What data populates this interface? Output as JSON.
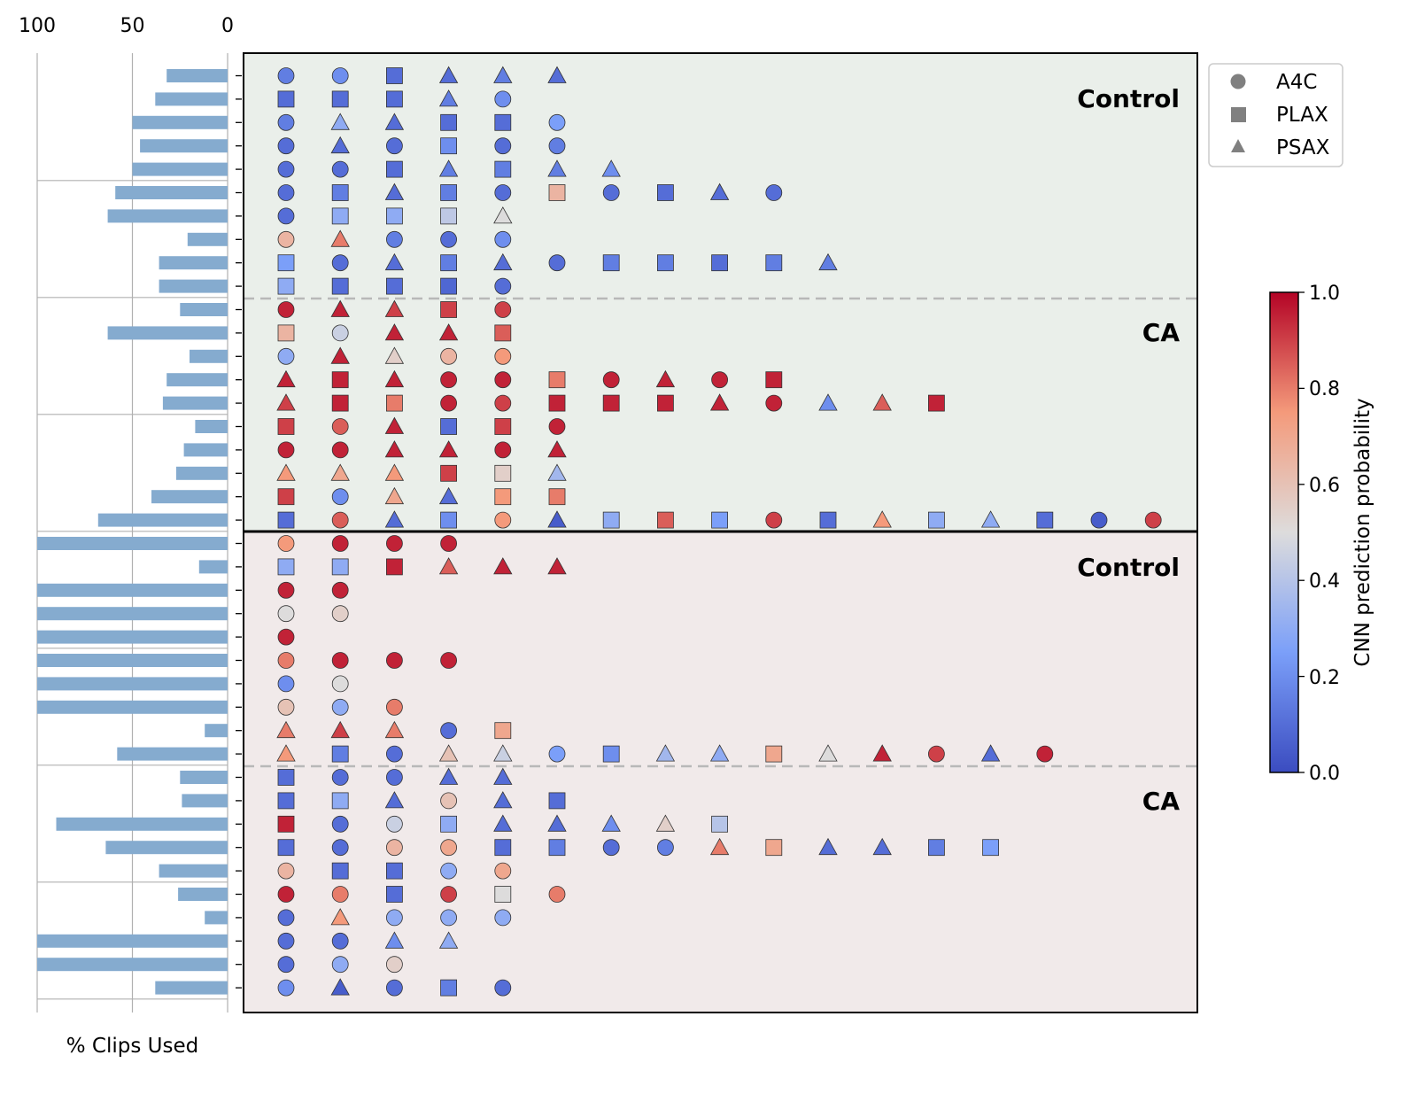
{
  "chart_data": [
    {
      "type": "bar",
      "orientation": "horizontal",
      "xlabel": "% Clips Used",
      "xlim": [
        100,
        0
      ],
      "xticks": [
        "100",
        "50",
        "0"
      ],
      "values": [
        32,
        38,
        50,
        46,
        50,
        59,
        63,
        21,
        36,
        36,
        25,
        63,
        20,
        32,
        34,
        17,
        23,
        27,
        40,
        68,
        100,
        15,
        100,
        100,
        100,
        100,
        100,
        100,
        12,
        58,
        25,
        24,
        90,
        64,
        36,
        26,
        12,
        100,
        100,
        38
      ]
    },
    {
      "type": "scatter",
      "ylabel_colorbar": "CNN prediction probability",
      "colorbar_ticks": [
        "0.0",
        "0.2",
        "0.4",
        "0.6",
        "0.8",
        "1.0"
      ],
      "colormap": "coolwarm",
      "legend": [
        {
          "marker": "circle",
          "label": "A4C"
        },
        {
          "marker": "square",
          "label": "PLAX"
        },
        {
          "marker": "triangle",
          "label": "PSAX"
        }
      ],
      "legend_position": "upper right",
      "panels": [
        {
          "name": "top",
          "group_labels": [
            "Control",
            "CA"
          ]
        },
        {
          "name": "bottom",
          "group_labels": [
            "Control",
            "CA"
          ]
        }
      ],
      "rows": [
        [
          [
            "c",
            0.15
          ],
          [
            "c",
            0.2
          ],
          [
            "s",
            0.1
          ],
          [
            "t",
            0.1
          ],
          [
            "t",
            0.15
          ],
          [
            "t",
            0.1
          ]
        ],
        [
          [
            "s",
            0.1
          ],
          [
            "s",
            0.1
          ],
          [
            "s",
            0.1
          ],
          [
            "t",
            0.15
          ],
          [
            "c",
            0.2
          ]
        ],
        [
          [
            "c",
            0.15
          ],
          [
            "t",
            0.3
          ],
          [
            "t",
            0.1
          ],
          [
            "s",
            0.1
          ],
          [
            "s",
            0.1
          ],
          [
            "c",
            0.25
          ]
        ],
        [
          [
            "c",
            0.1
          ],
          [
            "t",
            0.1
          ],
          [
            "c",
            0.1
          ],
          [
            "s",
            0.2
          ],
          [
            "c",
            0.1
          ],
          [
            "c",
            0.15
          ]
        ],
        [
          [
            "c",
            0.1
          ],
          [
            "c",
            0.1
          ],
          [
            "s",
            0.1
          ],
          [
            "t",
            0.15
          ],
          [
            "s",
            0.15
          ],
          [
            "t",
            0.15
          ],
          [
            "t",
            0.2
          ]
        ],
        [
          [
            "c",
            0.1
          ],
          [
            "s",
            0.15
          ],
          [
            "t",
            0.1
          ],
          [
            "s",
            0.15
          ],
          [
            "c",
            0.1
          ],
          [
            "s",
            0.65
          ],
          [
            "c",
            0.1
          ],
          [
            "s",
            0.1
          ],
          [
            "t",
            0.1
          ],
          [
            "c",
            0.1
          ]
        ],
        [
          [
            "c",
            0.1
          ],
          [
            "s",
            0.3
          ],
          [
            "s",
            0.3
          ],
          [
            "s",
            0.42
          ],
          [
            "t",
            0.5
          ]
        ],
        [
          [
            "c",
            0.65
          ],
          [
            "t",
            0.8
          ],
          [
            "c",
            0.15
          ],
          [
            "c",
            0.1
          ],
          [
            "c",
            0.2
          ]
        ],
        [
          [
            "s",
            0.25
          ],
          [
            "c",
            0.1
          ],
          [
            "t",
            0.1
          ],
          [
            "s",
            0.15
          ],
          [
            "t",
            0.1
          ],
          [
            "c",
            0.1
          ],
          [
            "s",
            0.15
          ],
          [
            "s",
            0.15
          ],
          [
            "s",
            0.1
          ],
          [
            "s",
            0.15
          ],
          [
            "t",
            0.15
          ]
        ],
        [
          [
            "s",
            0.3
          ],
          [
            "s",
            0.1
          ],
          [
            "s",
            0.1
          ],
          [
            "s",
            0.08
          ],
          [
            "c",
            0.1
          ]
        ],
        [
          [
            "c",
            0.95
          ],
          [
            "t",
            0.95
          ],
          [
            "t",
            0.9
          ],
          [
            "s",
            0.9
          ],
          [
            "c",
            0.9
          ]
        ],
        [
          [
            "s",
            0.65
          ],
          [
            "c",
            0.45
          ],
          [
            "t",
            0.95
          ],
          [
            "t",
            0.95
          ],
          [
            "s",
            0.85
          ]
        ],
        [
          [
            "c",
            0.3
          ],
          [
            "t",
            0.95
          ],
          [
            "t",
            0.55
          ],
          [
            "c",
            0.65
          ],
          [
            "c",
            0.75
          ]
        ],
        [
          [
            "t",
            0.95
          ],
          [
            "s",
            0.95
          ],
          [
            "t",
            0.95
          ],
          [
            "c",
            0.95
          ],
          [
            "c",
            0.95
          ],
          [
            "s",
            0.8
          ],
          [
            "c",
            0.95
          ],
          [
            "t",
            0.95
          ],
          [
            "c",
            0.95
          ],
          [
            "s",
            0.95
          ]
        ],
        [
          [
            "t",
            0.9
          ],
          [
            "s",
            0.95
          ],
          [
            "s",
            0.8
          ],
          [
            "c",
            0.95
          ],
          [
            "c",
            0.9
          ],
          [
            "s",
            0.95
          ],
          [
            "s",
            0.95
          ],
          [
            "s",
            0.95
          ],
          [
            "t",
            0.95
          ],
          [
            "c",
            0.95
          ],
          [
            "t",
            0.2
          ],
          [
            "t",
            0.85
          ],
          [
            "s",
            0.95
          ]
        ],
        [
          [
            "s",
            0.9
          ],
          [
            "c",
            0.85
          ],
          [
            "t",
            0.95
          ],
          [
            "s",
            0.1
          ],
          [
            "s",
            0.9
          ],
          [
            "c",
            0.95
          ]
        ],
        [
          [
            "c",
            0.95
          ],
          [
            "c",
            0.95
          ],
          [
            "t",
            0.95
          ],
          [
            "t",
            0.95
          ],
          [
            "c",
            0.95
          ],
          [
            "t",
            0.95
          ]
        ],
        [
          [
            "t",
            0.75
          ],
          [
            "t",
            0.7
          ],
          [
            "t",
            0.75
          ],
          [
            "s",
            0.9
          ],
          [
            "s",
            0.55
          ],
          [
            "t",
            0.35
          ]
        ],
        [
          [
            "s",
            0.9
          ],
          [
            "c",
            0.2
          ],
          [
            "t",
            0.7
          ],
          [
            "t",
            0.1
          ],
          [
            "s",
            0.75
          ],
          [
            "s",
            0.8
          ]
        ],
        [
          [
            "s",
            0.1
          ],
          [
            "c",
            0.85
          ],
          [
            "t",
            0.1
          ],
          [
            "s",
            0.2
          ],
          [
            "c",
            0.75
          ],
          [
            "t",
            0.05
          ],
          [
            "s",
            0.3
          ],
          [
            "s",
            0.85
          ],
          [
            "s",
            0.25
          ],
          [
            "c",
            0.9
          ],
          [
            "s",
            0.1
          ],
          [
            "t",
            0.75
          ],
          [
            "s",
            0.3
          ],
          [
            "t",
            0.3
          ],
          [
            "s",
            0.1
          ],
          [
            "c",
            0.05
          ],
          [
            "c",
            0.9
          ]
        ],
        [
          [
            "c",
            0.75
          ],
          [
            "c",
            0.95
          ],
          [
            "c",
            0.95
          ],
          [
            "c",
            0.95
          ]
        ],
        [
          [
            "s",
            0.3
          ],
          [
            "s",
            0.3
          ],
          [
            "s",
            0.95
          ],
          [
            "t",
            0.85
          ],
          [
            "t",
            0.95
          ],
          [
            "t",
            0.95
          ]
        ],
        [
          [
            "c",
            0.95
          ],
          [
            "c",
            0.95
          ]
        ],
        [
          [
            "c",
            0.5
          ],
          [
            "c",
            0.55
          ]
        ],
        [
          [
            "c",
            0.95
          ]
        ],
        [
          [
            "c",
            0.8
          ],
          [
            "c",
            0.95
          ],
          [
            "c",
            0.95
          ],
          [
            "c",
            0.95
          ]
        ],
        [
          [
            "c",
            0.2
          ],
          [
            "c",
            0.5
          ]
        ],
        [
          [
            "c",
            0.6
          ],
          [
            "c",
            0.3
          ],
          [
            "c",
            0.8
          ]
        ],
        [
          [
            "t",
            0.8
          ],
          [
            "t",
            0.9
          ],
          [
            "t",
            0.8
          ],
          [
            "c",
            0.1
          ],
          [
            "s",
            0.7
          ]
        ],
        [
          [
            "t",
            0.75
          ],
          [
            "s",
            0.15
          ],
          [
            "c",
            0.1
          ],
          [
            "t",
            0.6
          ],
          [
            "t",
            0.45
          ],
          [
            "c",
            0.25
          ],
          [
            "s",
            0.2
          ],
          [
            "t",
            0.35
          ],
          [
            "t",
            0.3
          ],
          [
            "s",
            0.7
          ],
          [
            "t",
            0.5
          ],
          [
            "t",
            0.95
          ],
          [
            "c",
            0.9
          ],
          [
            "t",
            0.1
          ],
          [
            "c",
            0.95
          ]
        ],
        [
          [
            "s",
            0.1
          ],
          [
            "c",
            0.1
          ],
          [
            "c",
            0.1
          ],
          [
            "t",
            0.1
          ],
          [
            "t",
            0.1
          ]
        ],
        [
          [
            "s",
            0.1
          ],
          [
            "s",
            0.3
          ],
          [
            "t",
            0.1
          ],
          [
            "c",
            0.6
          ],
          [
            "t",
            0.1
          ],
          [
            "s",
            0.1
          ]
        ],
        [
          [
            "s",
            0.95
          ],
          [
            "c",
            0.1
          ],
          [
            "c",
            0.45
          ],
          [
            "s",
            0.3
          ],
          [
            "t",
            0.1
          ],
          [
            "t",
            0.1
          ],
          [
            "t",
            0.2
          ],
          [
            "t",
            0.55
          ],
          [
            "s",
            0.4
          ]
        ],
        [
          [
            "s",
            0.1
          ],
          [
            "c",
            0.1
          ],
          [
            "c",
            0.65
          ],
          [
            "c",
            0.7
          ],
          [
            "s",
            0.1
          ],
          [
            "s",
            0.15
          ],
          [
            "c",
            0.1
          ],
          [
            "c",
            0.15
          ],
          [
            "t",
            0.8
          ],
          [
            "s",
            0.7
          ],
          [
            "t",
            0.1
          ],
          [
            "t",
            0.1
          ],
          [
            "s",
            0.15
          ],
          [
            "s",
            0.25
          ]
        ],
        [
          [
            "c",
            0.65
          ],
          [
            "s",
            0.1
          ],
          [
            "s",
            0.1
          ],
          [
            "c",
            0.3
          ],
          [
            "c",
            0.7
          ]
        ],
        [
          [
            "c",
            0.95
          ],
          [
            "c",
            0.8
          ],
          [
            "s",
            0.1
          ],
          [
            "c",
            0.9
          ],
          [
            "s",
            0.5
          ],
          [
            "c",
            0.8
          ]
        ],
        [
          [
            "c",
            0.1
          ],
          [
            "t",
            0.75
          ],
          [
            "c",
            0.3
          ],
          [
            "c",
            0.3
          ],
          [
            "c",
            0.3
          ]
        ],
        [
          [
            "c",
            0.1
          ],
          [
            "c",
            0.1
          ],
          [
            "t",
            0.2
          ],
          [
            "t",
            0.3
          ]
        ],
        [
          [
            "c",
            0.1
          ],
          [
            "c",
            0.3
          ],
          [
            "c",
            0.55
          ]
        ],
        [
          [
            "c",
            0.2
          ],
          [
            "t",
            0.05
          ],
          [
            "c",
            0.1
          ],
          [
            "s",
            0.15
          ],
          [
            "c",
            0.1
          ]
        ]
      ]
    }
  ]
}
